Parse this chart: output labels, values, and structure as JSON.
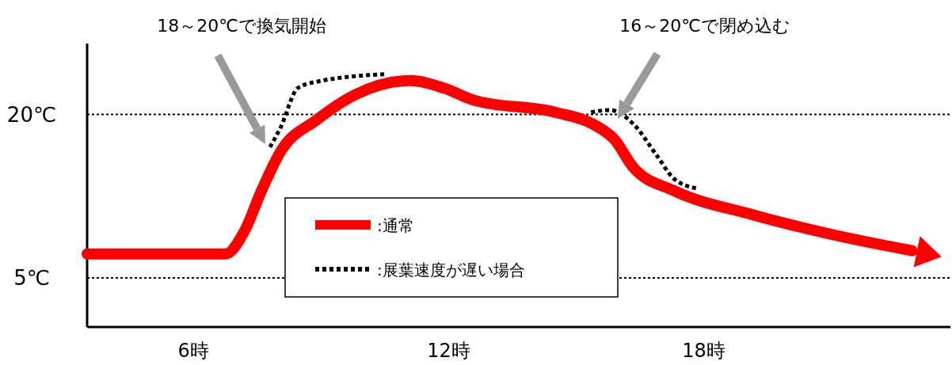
{
  "chart_data": {
    "type": "line",
    "xlim": [
      3.5,
      23.8
    ],
    "xticks": [
      {
        "value": 6,
        "label": "6時"
      },
      {
        "value": 12,
        "label": "12時"
      },
      {
        "value": 18,
        "label": "18時"
      }
    ],
    "ylim": [
      0.5,
      26.5
    ],
    "yticks": [
      {
        "value": 5,
        "label": "5℃"
      },
      {
        "value": 20,
        "label": "20℃"
      }
    ],
    "grid": "y",
    "legend": "bottom",
    "marker": "none",
    "series": [
      {
        "name": ":通常",
        "color": "#ff0000",
        "line_style": "solid",
        "x": [
          3.5,
          6.75,
          7.2,
          7.6,
          8.05,
          8.9,
          9.8,
          11.1,
          11.9,
          12.6,
          14.5,
          15.4,
          15.9,
          16.35,
          17.3,
          19.15,
          21,
          22.9
        ],
        "values": [
          7.2,
          7.2,
          9.3,
          13,
          16.6,
          19.5,
          21.8,
          23.1,
          22.4,
          21.3,
          20.2,
          19.1,
          17.7,
          15.1,
          13,
          10.8,
          9,
          7.5
        ]
      },
      {
        "name": ":展葉速度が遅い場合",
        "color": "#000000",
        "line_style": "dotted",
        "x": [
          7.8,
          8.05,
          8.45,
          8.9,
          10.55,
          13,
          15.35,
          15.8,
          16.35,
          16.9,
          17.3,
          17.85
        ],
        "values": [
          17,
          18.8,
          22.4,
          23,
          23.7,
          null,
          20.2,
          20.4,
          19.1,
          16.2,
          14.1,
          13.2
        ]
      }
    ],
    "annotations": [
      "18～20℃で換気開始",
      "16～20℃で閉め込む"
    ]
  }
}
